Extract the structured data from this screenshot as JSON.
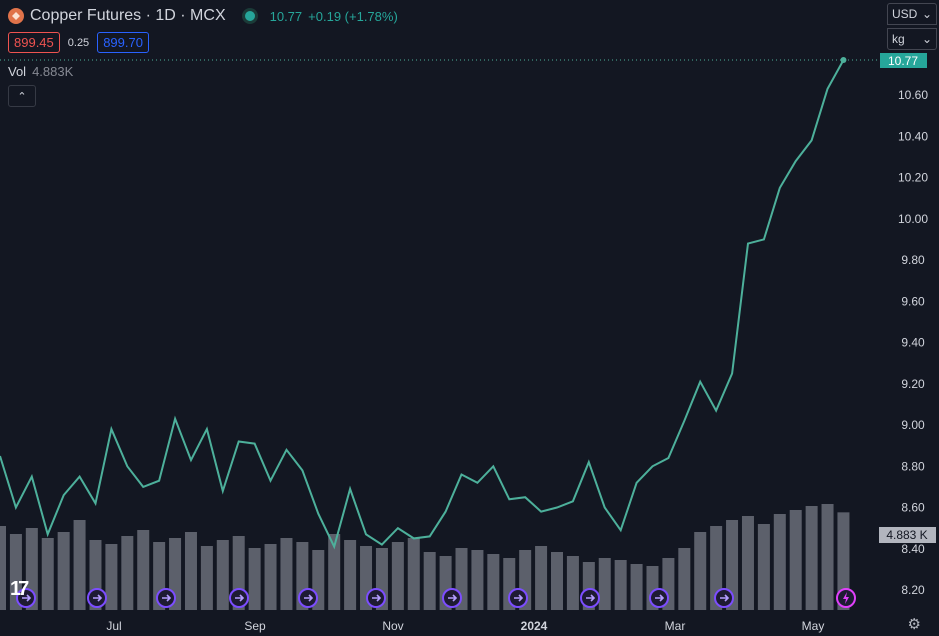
{
  "header": {
    "title": "Copper Futures · 1D · MCX",
    "last_price": "10.77",
    "change": "+0.19 (+1.78%)"
  },
  "quote": {
    "sell": "899.45",
    "spread": "0.25",
    "buy": "899.70"
  },
  "volume": {
    "label": "Vol",
    "value": "4.883K",
    "badge": "4.883 K"
  },
  "price_badge": "10.77",
  "currency_select": {
    "value": "USD"
  },
  "unit_select": {
    "value": "kg"
  },
  "colors": {
    "line": "#4db09b",
    "volume": "#6a6d78",
    "badge_price": "#26a69a",
    "sell": "#ef5350",
    "buy": "#2962ff",
    "event": "#7c4dff",
    "event_last": "#e040fb"
  },
  "icons": [
    "tradingview-logo",
    "settings-icon",
    "chevron-down-icon",
    "chevron-up-icon",
    "event-icon",
    "flash-icon"
  ],
  "chart_data": {
    "type": "line",
    "x_ticks": [
      "Jul",
      "Sep",
      "Nov",
      "2024",
      "Mar",
      "May"
    ],
    "y_ticks": [
      "10.60",
      "10.40",
      "10.20",
      "10.00",
      "9.80",
      "9.60",
      "9.40",
      "9.20",
      "9.00",
      "8.80",
      "8.60",
      "8.40",
      "8.20"
    ],
    "ylim": [
      8.1,
      10.8
    ],
    "x_range": [
      "2023-05-22",
      "2024-05-29"
    ],
    "series": [
      {
        "x": [
          "2023-05-22",
          "2023-05-29",
          "2023-06-05",
          "2023-06-12",
          "2023-06-19",
          "2023-06-26",
          "2023-07-03",
          "2023-07-10",
          "2023-07-17",
          "2023-07-24",
          "2023-07-31",
          "2023-08-07",
          "2023-08-14",
          "2023-08-21",
          "2023-08-28",
          "2023-09-04",
          "2023-09-11",
          "2023-09-18",
          "2023-09-25",
          "2023-10-02",
          "2023-10-09",
          "2023-10-16",
          "2023-10-23",
          "2023-10-30",
          "2023-11-06",
          "2023-11-13",
          "2023-11-20",
          "2023-11-27",
          "2023-12-04",
          "2023-12-11",
          "2023-12-18",
          "2023-12-25",
          "2024-01-01",
          "2024-01-08",
          "2024-01-15",
          "2024-01-22",
          "2024-01-29",
          "2024-02-05",
          "2024-02-12",
          "2024-02-19",
          "2024-02-26",
          "2024-03-04",
          "2024-03-11",
          "2024-03-18",
          "2024-03-25",
          "2024-04-01",
          "2024-04-08",
          "2024-04-15",
          "2024-04-22",
          "2024-04-29",
          "2024-05-06",
          "2024-05-13",
          "2024-05-20",
          "2024-05-27"
        ],
        "values": [
          8.85,
          8.6,
          8.75,
          8.47,
          8.66,
          8.75,
          8.62,
          8.98,
          8.8,
          8.7,
          8.73,
          9.03,
          8.83,
          8.98,
          8.68,
          8.92,
          8.91,
          8.73,
          8.88,
          8.78,
          8.57,
          8.41,
          8.69,
          8.47,
          8.42,
          8.5,
          8.45,
          8.46,
          8.58,
          8.76,
          8.72,
          8.8,
          8.64,
          8.65,
          8.58,
          8.6,
          8.63,
          8.82,
          8.6,
          8.49,
          8.72,
          8.8,
          8.84,
          9.02,
          9.21,
          9.07,
          9.25,
          9.88,
          9.9,
          10.15,
          10.28,
          10.38,
          10.63,
          10.77
        ]
      }
    ],
    "volume_ylim": [
      0,
      8000
    ],
    "volume_values": [
      4200,
      3800,
      4100,
      3600,
      3900,
      4500,
      3500,
      3300,
      3700,
      4000,
      3400,
      3600,
      3900,
      3200,
      3500,
      3700,
      3100,
      3300,
      3600,
      3400,
      3000,
      3800,
      3500,
      3200,
      3100,
      3400,
      3600,
      2900,
      2700,
      3100,
      3000,
      2800,
      2600,
      3000,
      3200,
      2900,
      2700,
      2400,
      2600,
      2500,
      2300,
      2200,
      2600,
      3100,
      3900,
      4200,
      4500,
      4700,
      4300,
      4800,
      5000,
      5200,
      5300,
      4883
    ]
  }
}
